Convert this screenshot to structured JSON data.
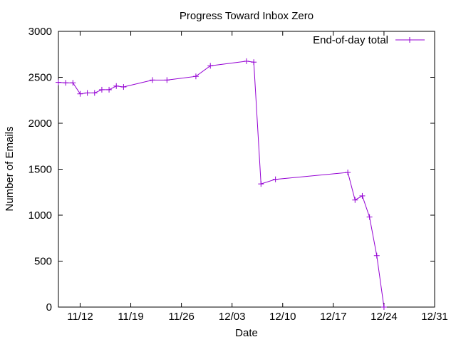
{
  "chart_data": {
    "type": "line",
    "title": "Progress Toward Inbox Zero",
    "xlabel": "Date",
    "ylabel": "Number of Emails",
    "x_type": "date",
    "xlim": [
      "2023-11-09",
      "2023-12-31"
    ],
    "ylim": [
      0,
      3000
    ],
    "x_ticks": [
      {
        "date": "2023-11-12",
        "label": "11/12"
      },
      {
        "date": "2023-11-19",
        "label": "11/19"
      },
      {
        "date": "2023-11-26",
        "label": "11/26"
      },
      {
        "date": "2023-12-03",
        "label": "12/03"
      },
      {
        "date": "2023-12-10",
        "label": "12/10"
      },
      {
        "date": "2023-12-17",
        "label": "12/17"
      },
      {
        "date": "2023-12-24",
        "label": "12/24"
      },
      {
        "date": "2023-12-31",
        "label": "12/31"
      }
    ],
    "y_ticks": [
      0,
      500,
      1000,
      1500,
      2000,
      2500,
      3000
    ],
    "grid": false,
    "legend": {
      "position": "top-right"
    },
    "series": [
      {
        "name": "End-of-day total",
        "color": "#9400d3",
        "marker": "plus",
        "points": [
          {
            "date": "2023-11-09",
            "value": 2445
          },
          {
            "date": "2023-11-10",
            "value": 2440
          },
          {
            "date": "2023-11-11",
            "value": 2440
          },
          {
            "date": "2023-11-12",
            "value": 2320
          },
          {
            "date": "2023-11-13",
            "value": 2330
          },
          {
            "date": "2023-11-14",
            "value": 2330
          },
          {
            "date": "2023-11-15",
            "value": 2365
          },
          {
            "date": "2023-11-16",
            "value": 2365
          },
          {
            "date": "2023-11-17",
            "value": 2405
          },
          {
            "date": "2023-11-18",
            "value": 2395
          },
          {
            "date": "2023-11-22",
            "value": 2470
          },
          {
            "date": "2023-11-24",
            "value": 2470
          },
          {
            "date": "2023-11-28",
            "value": 2510
          },
          {
            "date": "2023-11-30",
            "value": 2625
          },
          {
            "date": "2023-12-05",
            "value": 2675
          },
          {
            "date": "2023-12-06",
            "value": 2665
          },
          {
            "date": "2023-12-07",
            "value": 1340
          },
          {
            "date": "2023-12-09",
            "value": 1390
          },
          {
            "date": "2023-12-19",
            "value": 1465
          },
          {
            "date": "2023-12-20",
            "value": 1165
          },
          {
            "date": "2023-12-21",
            "value": 1210
          },
          {
            "date": "2023-12-22",
            "value": 980
          },
          {
            "date": "2023-12-23",
            "value": 560
          },
          {
            "date": "2023-12-24",
            "value": 0
          }
        ]
      }
    ]
  }
}
